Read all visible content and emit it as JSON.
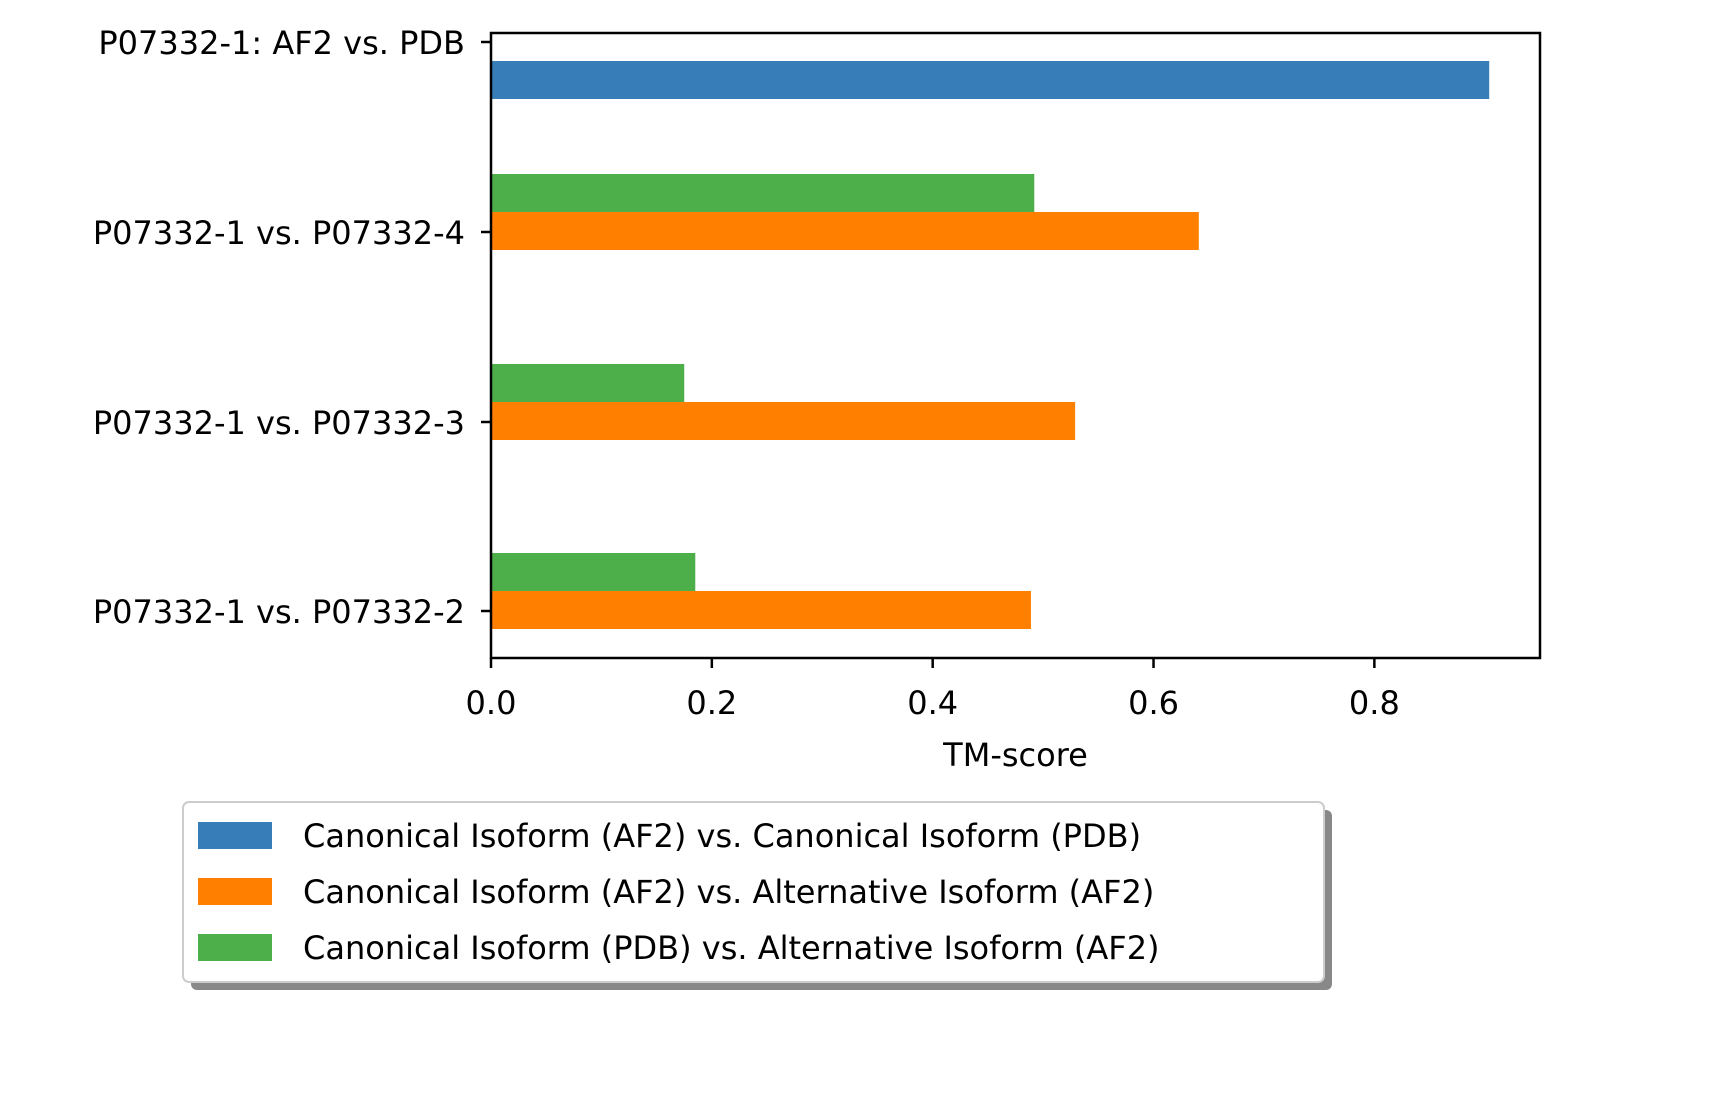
{
  "chart_data": {
    "type": "bar",
    "orientation": "horizontal",
    "title": "",
    "xlabel": "TM-score",
    "ylabel": "",
    "xlim": [
      0,
      0.95
    ],
    "xticks": [
      0.0,
      0.2,
      0.4,
      0.6,
      0.8
    ],
    "xtick_labels": [
      "0.0",
      "0.2",
      "0.4",
      "0.6",
      "0.8"
    ],
    "grid": false,
    "categories": [
      "P07332-1: AF2 vs. PDB",
      "P07332-1 vs. P07332-4",
      "P07332-1 vs. P07332-3",
      "P07332-1 vs. P07332-2"
    ],
    "series": [
      {
        "name": "Canonical Isoform (AF2) vs. Canonical Isoform (PDB)",
        "color": "#377eb8",
        "values": [
          0.904,
          null,
          null,
          null
        ]
      },
      {
        "name": "Canonical Isoform (AF2) vs. Alternative Isoform (AF2)",
        "color": "#ff7f00",
        "values": [
          null,
          0.641,
          0.529,
          0.489
        ]
      },
      {
        "name": "Canonical Isoform (PDB) vs. Alternative Isoform (AF2)",
        "color": "#4daf4a",
        "values": [
          null,
          0.492,
          0.175,
          0.185
        ]
      }
    ],
    "legend": {
      "placement": "bottom-center, below plot",
      "shadow": true,
      "entries": [
        "Canonical Isoform (AF2) vs. Canonical Isoform (PDB)",
        "Canonical Isoform (AF2) vs. Alternative Isoform (AF2)",
        "Canonical Isoform (PDB) vs. Alternative Isoform (AF2)"
      ]
    }
  }
}
